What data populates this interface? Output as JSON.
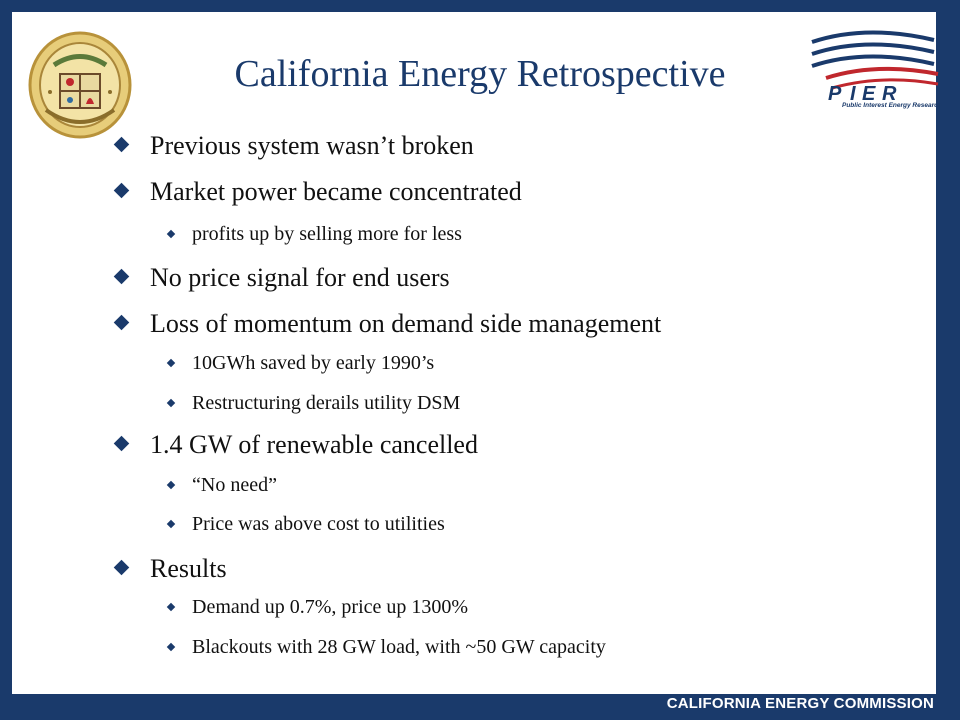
{
  "slide": {
    "title": "California Energy Retrospective",
    "footer": "CALIFORNIA ENERGY COMMISSION",
    "logo_right": {
      "letters": "PıER",
      "subtitle": "Public Interest Energy Research"
    },
    "logo_left": {
      "icon": "california-energy-commission-seal"
    },
    "bullets": [
      {
        "level": 1,
        "text": "Previous system wasn’t broken"
      },
      {
        "level": 1,
        "text": "Market power became concentrated"
      },
      {
        "level": 2,
        "text": "profits up by selling more for less"
      },
      {
        "level": 1,
        "text": "No price signal for end users"
      },
      {
        "level": 1,
        "text": "Loss of momentum on demand side management"
      },
      {
        "level": 2,
        "text": "10GWh saved by early 1990’s"
      },
      {
        "level": 2,
        "text": "Restructuring derails utility DSM"
      },
      {
        "level": 1,
        "text": "1.4 GW of renewable cancelled"
      },
      {
        "level": 2,
        "text": "“No need”"
      },
      {
        "level": 2,
        "text": "Price was above cost to utilities"
      },
      {
        "level": 1,
        "text": "Results"
      },
      {
        "level": 2,
        "text": "Demand up 0.7%, price up 1300%"
      },
      {
        "level": 2,
        "text": "Blackouts with 28 GW load, with ~50 GW capacity"
      }
    ],
    "colors": {
      "frame": "#1a3a6b",
      "accent_red": "#c0272d",
      "seal_gold": "#d9b24a"
    }
  }
}
